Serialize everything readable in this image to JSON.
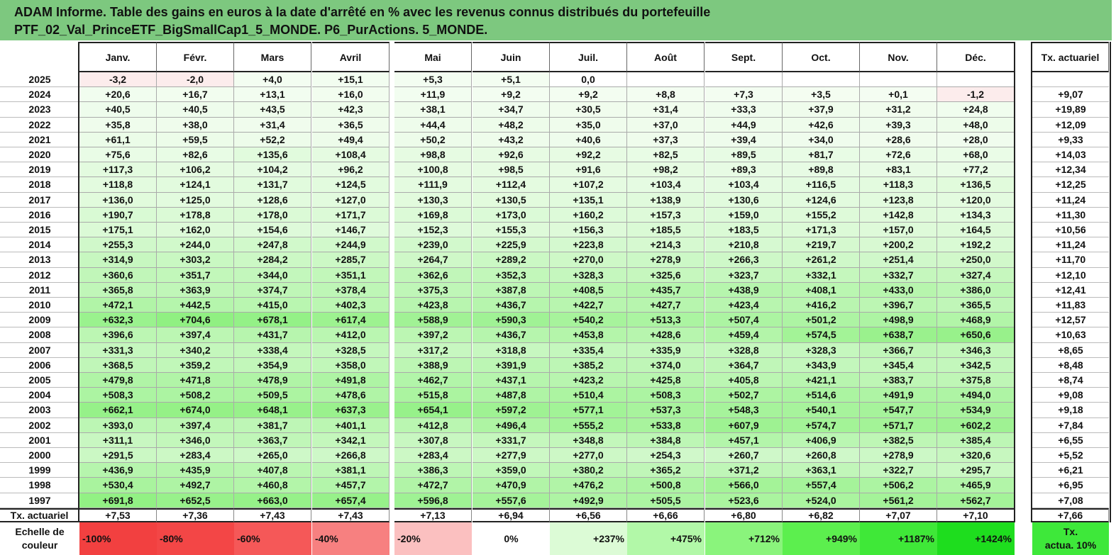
{
  "title": {
    "line1": "ADAM Informe. Table des gains en euros à la date d'arrêté en % avec les revenus connus distribués du portefeuille",
    "line2": "PTF_02_Val_PrinceETF_BigSmallCap1_5_MONDE. P6_PurActions. 5_MONDE."
  },
  "headers": {
    "months": [
      "Janv.",
      "Févr.",
      "Mars",
      "Avril",
      "Mai",
      "Juin",
      "Juil.",
      "Août",
      "Sept.",
      "Oct.",
      "Nov.",
      "Déc."
    ],
    "rate": "Tx. actuariel"
  },
  "rows": [
    {
      "year": "2025",
      "values": [
        "-3,2",
        "-2,0",
        "+4,0",
        "+15,1",
        "+5,3",
        "+5,1",
        "0,0",
        "",
        "",
        "",
        "",
        ""
      ],
      "rate": ""
    },
    {
      "year": "2024",
      "values": [
        "+20,6",
        "+16,7",
        "+13,1",
        "+16,0",
        "+11,9",
        "+9,2",
        "+9,2",
        "+8,8",
        "+7,3",
        "+3,5",
        "+0,1",
        "-1,2"
      ],
      "rate": "+9,07"
    },
    {
      "year": "2023",
      "values": [
        "+40,5",
        "+40,5",
        "+43,5",
        "+42,3",
        "+38,1",
        "+34,7",
        "+30,5",
        "+31,4",
        "+33,3",
        "+37,9",
        "+31,2",
        "+24,8"
      ],
      "rate": "+19,89"
    },
    {
      "year": "2022",
      "values": [
        "+35,8",
        "+38,0",
        "+31,4",
        "+36,5",
        "+44,4",
        "+48,2",
        "+35,0",
        "+37,0",
        "+44,9",
        "+42,6",
        "+39,3",
        "+48,0"
      ],
      "rate": "+12,09"
    },
    {
      "year": "2021",
      "values": [
        "+61,1",
        "+59,5",
        "+52,2",
        "+49,4",
        "+50,2",
        "+43,2",
        "+40,6",
        "+37,3",
        "+39,4",
        "+34,0",
        "+28,6",
        "+28,0"
      ],
      "rate": "+9,33"
    },
    {
      "year": "2020",
      "values": [
        "+75,6",
        "+82,6",
        "+135,6",
        "+108,4",
        "+98,8",
        "+92,6",
        "+92,2",
        "+82,5",
        "+89,5",
        "+81,7",
        "+72,6",
        "+68,0"
      ],
      "rate": "+14,03"
    },
    {
      "year": "2019",
      "values": [
        "+117,3",
        "+106,2",
        "+104,2",
        "+96,2",
        "+100,8",
        "+98,5",
        "+91,6",
        "+98,2",
        "+89,3",
        "+89,8",
        "+83,1",
        "+77,2"
      ],
      "rate": "+12,34"
    },
    {
      "year": "2018",
      "values": [
        "+118,8",
        "+124,1",
        "+131,7",
        "+124,5",
        "+111,9",
        "+112,4",
        "+107,2",
        "+103,4",
        "+103,4",
        "+116,5",
        "+118,3",
        "+136,5"
      ],
      "rate": "+12,25"
    },
    {
      "year": "2017",
      "values": [
        "+136,0",
        "+125,0",
        "+128,6",
        "+127,0",
        "+130,3",
        "+130,5",
        "+135,1",
        "+138,9",
        "+130,6",
        "+124,6",
        "+123,8",
        "+120,0"
      ],
      "rate": "+11,24"
    },
    {
      "year": "2016",
      "values": [
        "+190,7",
        "+178,8",
        "+178,0",
        "+171,7",
        "+169,8",
        "+173,0",
        "+160,2",
        "+157,3",
        "+159,0",
        "+155,2",
        "+142,8",
        "+134,3"
      ],
      "rate": "+11,30"
    },
    {
      "year": "2015",
      "values": [
        "+175,1",
        "+162,0",
        "+154,6",
        "+146,7",
        "+152,3",
        "+155,3",
        "+156,3",
        "+185,5",
        "+183,5",
        "+171,3",
        "+157,0",
        "+164,5"
      ],
      "rate": "+10,56"
    },
    {
      "year": "2014",
      "values": [
        "+255,3",
        "+244,0",
        "+247,8",
        "+244,9",
        "+239,0",
        "+225,9",
        "+223,8",
        "+214,3",
        "+210,8",
        "+219,7",
        "+200,2",
        "+192,2"
      ],
      "rate": "+11,24"
    },
    {
      "year": "2013",
      "values": [
        "+314,9",
        "+303,2",
        "+284,2",
        "+285,7",
        "+264,7",
        "+289,2",
        "+270,0",
        "+278,9",
        "+266,3",
        "+261,2",
        "+251,4",
        "+250,0"
      ],
      "rate": "+11,70"
    },
    {
      "year": "2012",
      "values": [
        "+360,6",
        "+351,7",
        "+344,0",
        "+351,1",
        "+362,6",
        "+352,3",
        "+328,3",
        "+325,6",
        "+323,7",
        "+332,1",
        "+332,7",
        "+327,4"
      ],
      "rate": "+12,10"
    },
    {
      "year": "2011",
      "values": [
        "+365,8",
        "+363,9",
        "+374,7",
        "+378,4",
        "+375,3",
        "+387,8",
        "+408,5",
        "+435,7",
        "+438,9",
        "+408,1",
        "+433,0",
        "+386,0"
      ],
      "rate": "+12,41"
    },
    {
      "year": "2010",
      "values": [
        "+472,1",
        "+442,5",
        "+415,0",
        "+402,3",
        "+423,8",
        "+436,7",
        "+422,7",
        "+427,7",
        "+423,4",
        "+416,2",
        "+396,7",
        "+365,5"
      ],
      "rate": "+11,83"
    },
    {
      "year": "2009",
      "values": [
        "+632,3",
        "+704,6",
        "+678,1",
        "+617,4",
        "+588,9",
        "+590,3",
        "+540,2",
        "+513,3",
        "+507,4",
        "+501,2",
        "+498,9",
        "+468,9"
      ],
      "rate": "+12,57"
    },
    {
      "year": "2008",
      "values": [
        "+396,6",
        "+397,4",
        "+431,7",
        "+412,0",
        "+397,2",
        "+436,7",
        "+453,8",
        "+428,6",
        "+459,4",
        "+574,5",
        "+638,7",
        "+650,6"
      ],
      "rate": "+10,63"
    },
    {
      "year": "2007",
      "values": [
        "+331,3",
        "+340,2",
        "+338,4",
        "+328,5",
        "+317,2",
        "+318,8",
        "+335,4",
        "+335,9",
        "+328,8",
        "+328,3",
        "+366,7",
        "+346,3"
      ],
      "rate": "+8,65"
    },
    {
      "year": "2006",
      "values": [
        "+368,5",
        "+359,2",
        "+354,9",
        "+358,0",
        "+388,9",
        "+391,9",
        "+385,2",
        "+374,0",
        "+364,7",
        "+343,9",
        "+345,4",
        "+342,5"
      ],
      "rate": "+8,48"
    },
    {
      "year": "2005",
      "values": [
        "+479,8",
        "+471,8",
        "+478,9",
        "+491,8",
        "+462,7",
        "+437,1",
        "+423,2",
        "+425,8",
        "+405,8",
        "+421,1",
        "+383,7",
        "+375,8"
      ],
      "rate": "+8,74"
    },
    {
      "year": "2004",
      "values": [
        "+508,3",
        "+508,2",
        "+509,5",
        "+478,6",
        "+515,8",
        "+487,8",
        "+510,4",
        "+508,3",
        "+502,7",
        "+514,6",
        "+491,9",
        "+494,0"
      ],
      "rate": "+9,08"
    },
    {
      "year": "2003",
      "values": [
        "+662,1",
        "+674,0",
        "+648,1",
        "+637,3",
        "+654,1",
        "+597,2",
        "+577,1",
        "+537,3",
        "+548,3",
        "+540,1",
        "+547,7",
        "+534,9"
      ],
      "rate": "+9,18"
    },
    {
      "year": "2002",
      "values": [
        "+393,0",
        "+397,4",
        "+381,7",
        "+401,1",
        "+412,8",
        "+496,4",
        "+555,2",
        "+533,8",
        "+607,9",
        "+574,7",
        "+571,7",
        "+602,2"
      ],
      "rate": "+7,84"
    },
    {
      "year": "2001",
      "values": [
        "+311,1",
        "+346,0",
        "+363,7",
        "+342,1",
        "+307,8",
        "+331,7",
        "+348,8",
        "+384,8",
        "+457,1",
        "+406,9",
        "+382,5",
        "+385,4"
      ],
      "rate": "+6,55"
    },
    {
      "year": "2000",
      "values": [
        "+291,5",
        "+283,4",
        "+265,0",
        "+266,8",
        "+283,4",
        "+277,9",
        "+277,0",
        "+254,3",
        "+260,7",
        "+260,8",
        "+278,9",
        "+320,6"
      ],
      "rate": "+5,52"
    },
    {
      "year": "1999",
      "values": [
        "+436,9",
        "+435,9",
        "+407,8",
        "+381,1",
        "+386,3",
        "+359,0",
        "+380,2",
        "+365,2",
        "+371,2",
        "+363,1",
        "+322,7",
        "+295,7"
      ],
      "rate": "+6,21"
    },
    {
      "year": "1998",
      "values": [
        "+530,4",
        "+492,7",
        "+460,8",
        "+457,7",
        "+472,7",
        "+470,9",
        "+476,2",
        "+500,8",
        "+566,0",
        "+557,4",
        "+506,2",
        "+465,9"
      ],
      "rate": "+6,95"
    },
    {
      "year": "1997",
      "values": [
        "+691,8",
        "+652,5",
        "+663,0",
        "+657,4",
        "+596,8",
        "+557,6",
        "+492,9",
        "+505,5",
        "+523,6",
        "+524,0",
        "+561,2",
        "+562,7"
      ],
      "rate": "+7,08"
    }
  ],
  "rate_row": {
    "label": "Tx. actuariel",
    "values": [
      "+7,53",
      "+7,36",
      "+7,43",
      "+7,43",
      "+7,13",
      "+6,94",
      "+6,56",
      "+6,66",
      "+6,80",
      "+6,82",
      "+7,07",
      "+7,10"
    ],
    "total": "+7,66"
  },
  "scale": {
    "label_line1": "Echelle de",
    "label_line2": "couleur",
    "items": [
      {
        "label": "-100%",
        "color": "#f24040",
        "align": "left"
      },
      {
        "label": "-80%",
        "color": "#f34646",
        "align": "left"
      },
      {
        "label": "-60%",
        "color": "#f55858",
        "align": "left"
      },
      {
        "label": "-40%",
        "color": "#f78080",
        "align": "left"
      },
      {
        "label": "-20%",
        "color": "#fbc0c0",
        "align": "left"
      },
      {
        "label": "0%",
        "color": "#ffffff",
        "align": "center"
      },
      {
        "label": "+237%",
        "color": "#dcfbd6",
        "align": "right"
      },
      {
        "label": "+475%",
        "color": "#b2f8a8",
        "align": "right"
      },
      {
        "label": "+712%",
        "color": "#8af47c",
        "align": "right"
      },
      {
        "label": "+949%",
        "color": "#5cef4e",
        "align": "right"
      },
      {
        "label": "+1187%",
        "color": "#3fe838",
        "align": "right"
      },
      {
        "label": "+1424%",
        "color": "#1edd1e",
        "align": "right"
      }
    ],
    "rate_line1": "Tx.",
    "rate_line2": "actua. 10%",
    "rate_color": "#3ee83a"
  },
  "colors": {
    "title_bg": "#7dc87f",
    "negative_light": "#fbeaea"
  }
}
